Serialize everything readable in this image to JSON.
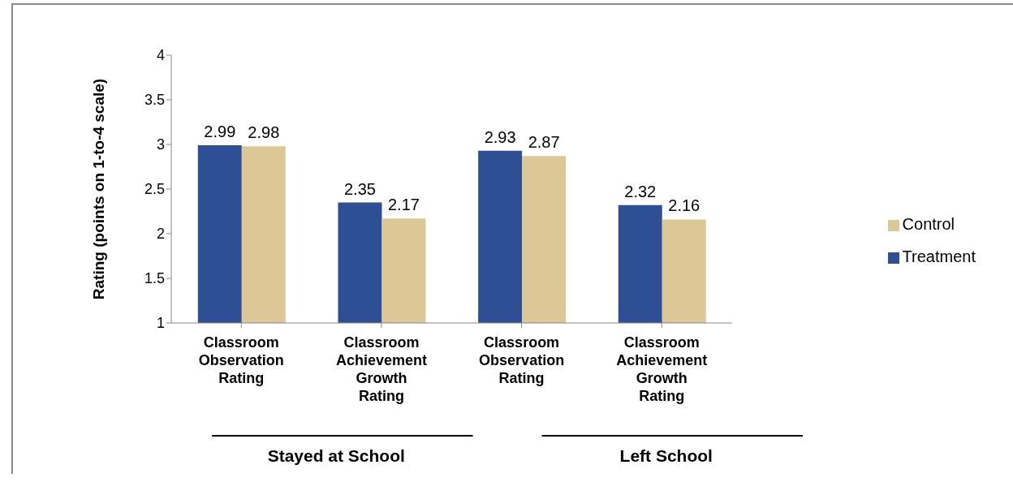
{
  "chart_data": {
    "type": "bar",
    "ylabel": "Rating (points on 1-to-4 scale)",
    "categories": [
      "Classroom Observation Rating",
      "Classroom Achievement Growth Rating",
      "Classroom Observation Rating",
      "Classroom Achievement Growth Rating"
    ],
    "series": [
      {
        "name": "Treatment",
        "color": "#2e4f93",
        "values": [
          2.99,
          2.35,
          2.93,
          2.32
        ]
      },
      {
        "name": "Control",
        "color": "#dcc896",
        "values": [
          2.98,
          2.17,
          2.87,
          2.16
        ]
      }
    ],
    "ylim": [
      1,
      4
    ],
    "yticks": [
      1,
      1.5,
      2,
      2.5,
      3,
      3.5,
      4
    ],
    "grid": false,
    "legend": "right",
    "data_labels": true,
    "annotations": [
      "Stayed at School",
      "Left School"
    ]
  }
}
